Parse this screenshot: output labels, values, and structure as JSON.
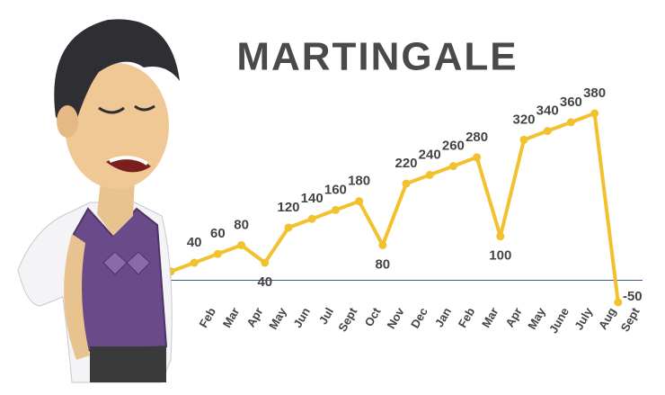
{
  "chart_data": {
    "type": "line",
    "title": "MARTINGALE",
    "categories": [
      null,
      "Feb",
      "Mar",
      "Apr",
      "May",
      "Jun",
      "Jul",
      "Sept",
      "Oct",
      "Nov",
      "Dec",
      "Jan",
      "Feb",
      "Mar",
      "Apr",
      "May",
      "June",
      "July",
      "Aug",
      "Sept"
    ],
    "values": [
      20,
      40,
      60,
      80,
      40,
      120,
      140,
      160,
      180,
      80,
      220,
      240,
      260,
      280,
      100,
      320,
      340,
      360,
      380,
      -50
    ],
    "color": "#f2c12e",
    "baseline_color": "#3a5a8c",
    "ylim": [
      -60,
      400
    ]
  }
}
